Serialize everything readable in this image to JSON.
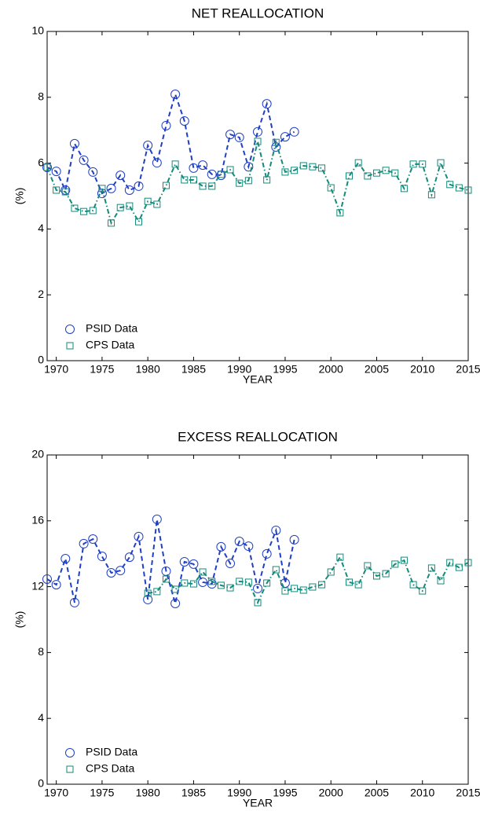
{
  "chart_data": [
    {
      "type": "line",
      "title": "NET REALLOCATION",
      "x_label": "YEAR",
      "y_label": "(%)",
      "xlim": [
        1969,
        2015
      ],
      "xticks": [
        1970,
        1975,
        1980,
        1985,
        1990,
        1995,
        2000,
        2005,
        2010,
        2015
      ],
      "ylim": [
        0,
        10
      ],
      "yticks": [
        0,
        2,
        4,
        6,
        8,
        10
      ],
      "legend": "lower left",
      "series": [
        {
          "name": "PSID Data",
          "color": "#1f3fc4",
          "marker": "circle",
          "dash": "dashed",
          "x": [
            1969,
            1970,
            1971,
            1972,
            1973,
            1974,
            1975,
            1976,
            1977,
            1978,
            1979,
            1980,
            1981,
            1982,
            1983,
            1984,
            1985,
            1986,
            1987,
            1988,
            1989,
            1990,
            1991,
            1992,
            1993,
            1994,
            1995,
            1996
          ],
          "values": [
            5.87,
            5.75,
            5.18,
            6.59,
            6.09,
            5.73,
            5.08,
            5.23,
            5.63,
            5.18,
            5.3,
            6.54,
            6.01,
            7.14,
            8.09,
            7.28,
            5.85,
            5.94,
            5.66,
            5.63,
            6.87,
            6.78,
            5.89,
            6.95,
            7.8,
            6.49,
            6.8,
            6.95
          ]
        },
        {
          "name": "CPS Data",
          "color": "#138a7a",
          "marker": "square",
          "dash": "dashdot",
          "x": [
            1969,
            1970,
            1971,
            1972,
            1973,
            1974,
            1975,
            1976,
            1977,
            1978,
            1979,
            1980,
            1981,
            1982,
            1983,
            1984,
            1985,
            1986,
            1987,
            1988,
            1989,
            1990,
            1991,
            1992,
            1993,
            1994,
            1995,
            1996,
            1997,
            1998,
            1999,
            2000,
            2001,
            2002,
            2003,
            2004,
            2005,
            2006,
            2007,
            2008,
            2009,
            2010,
            2011,
            2012,
            2013,
            2014,
            2015
          ],
          "values": [
            5.87,
            5.18,
            5.13,
            4.63,
            4.53,
            4.56,
            5.23,
            4.18,
            4.65,
            4.7,
            4.22,
            4.84,
            4.75,
            5.32,
            5.97,
            5.49,
            5.49,
            5.3,
            5.3,
            5.66,
            5.8,
            5.39,
            5.47,
            6.66,
            5.49,
            6.63,
            5.73,
            5.78,
            5.92,
            5.89,
            5.85,
            5.25,
            4.49,
            5.61,
            6.01,
            5.61,
            5.7,
            5.78,
            5.7,
            5.23,
            5.97,
            5.97,
            5.04,
            6.01,
            5.35,
            5.25,
            5.18
          ]
        }
      ]
    },
    {
      "type": "line",
      "title": "EXCESS REALLOCATION",
      "x_label": "YEAR",
      "y_label": "(%)",
      "xlim": [
        1969,
        2015
      ],
      "xticks": [
        1970,
        1975,
        1980,
        1985,
        1990,
        1995,
        2000,
        2005,
        2010,
        2015
      ],
      "ylim": [
        0,
        20
      ],
      "yticks": [
        0,
        4,
        8,
        12,
        16,
        20
      ],
      "legend": "lower left",
      "series": [
        {
          "name": "PSID Data",
          "color": "#1f3fc4",
          "marker": "circle",
          "dash": "dashed",
          "x": [
            1969,
            1970,
            1971,
            1972,
            1973,
            1974,
            1975,
            1976,
            1977,
            1978,
            1979,
            1980,
            1981,
            1982,
            1983,
            1984,
            1985,
            1986,
            1987,
            1988,
            1989,
            1990,
            1991,
            1992,
            1993,
            1994,
            1995,
            1996
          ],
          "values": [
            12.46,
            12.12,
            13.7,
            11.03,
            14.61,
            14.89,
            13.84,
            12.84,
            12.98,
            13.79,
            15.04,
            11.22,
            16.09,
            12.94,
            10.98,
            13.51,
            13.37,
            12.27,
            12.17,
            14.42,
            13.41,
            14.75,
            14.46,
            11.89,
            13.99,
            15.42,
            12.22,
            14.85
          ]
        },
        {
          "name": "CPS Data",
          "color": "#138a7a",
          "marker": "square",
          "dash": "dashdot",
          "x": [
            1980,
            1981,
            1982,
            1983,
            1984,
            1985,
            1986,
            1987,
            1988,
            1989,
            1990,
            1991,
            1992,
            1993,
            1994,
            1995,
            1996,
            1997,
            1998,
            1999,
            2000,
            2001,
            2002,
            2003,
            2004,
            2005,
            2006,
            2007,
            2008,
            2009,
            2010,
            2011,
            2012,
            2013,
            2014,
            2015
          ],
          "values": [
            11.6,
            11.7,
            12.46,
            11.84,
            12.22,
            12.17,
            12.89,
            12.32,
            12.08,
            11.93,
            12.32,
            12.27,
            11.03,
            12.22,
            13.03,
            11.74,
            11.89,
            11.79,
            11.98,
            12.12,
            12.89,
            13.79,
            12.27,
            12.12,
            13.27,
            12.65,
            12.79,
            13.37,
            13.6,
            12.12,
            11.74,
            13.13,
            12.36,
            13.46,
            13.17,
            13.46
          ]
        }
      ]
    }
  ]
}
